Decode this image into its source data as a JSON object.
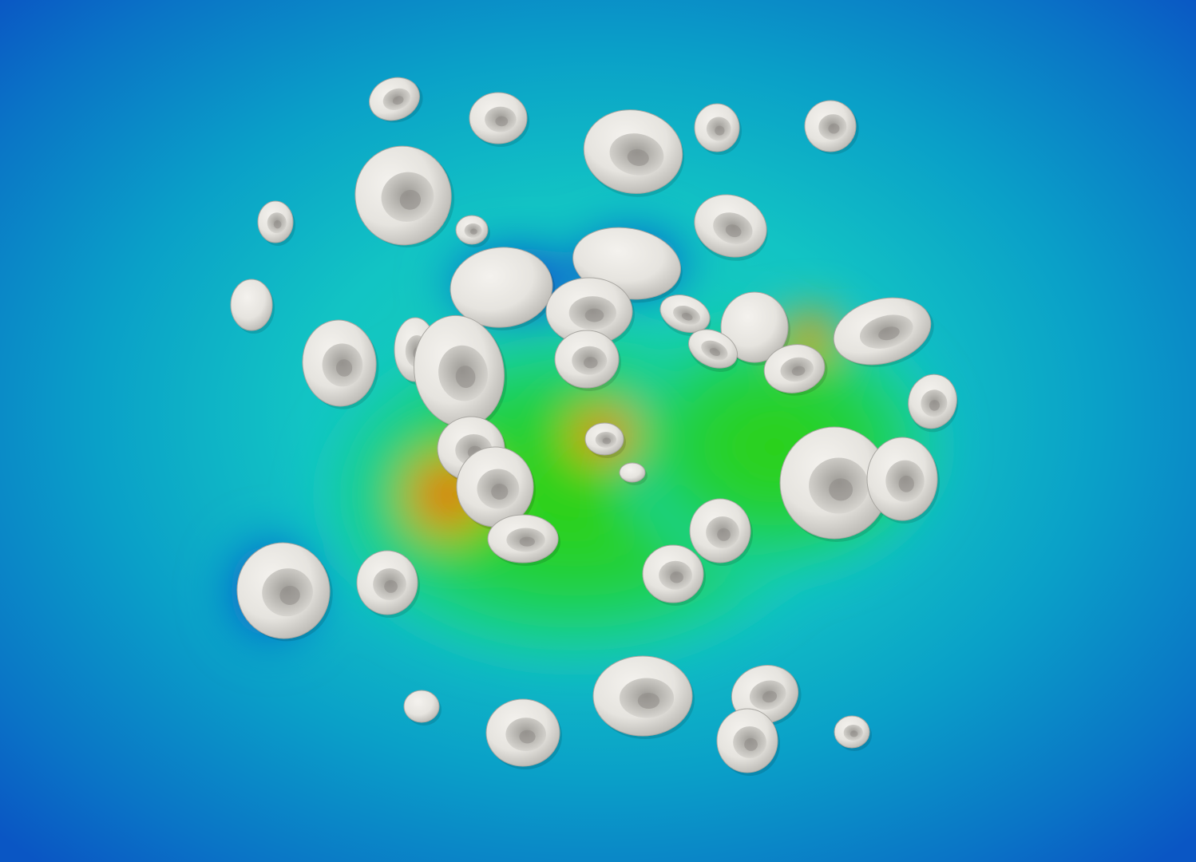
{
  "scene": {
    "description_visible_text": "",
    "colormap": [
      "#0a56c4",
      "#0aa6cc",
      "#19cfc0",
      "#1ed15a",
      "#7fd10a",
      "#e0a20a",
      "#e0200a"
    ],
    "cell_color": "#e9e7e2",
    "cell_shade": "#a9a7a2",
    "cell_hole": "#8f8d88"
  }
}
